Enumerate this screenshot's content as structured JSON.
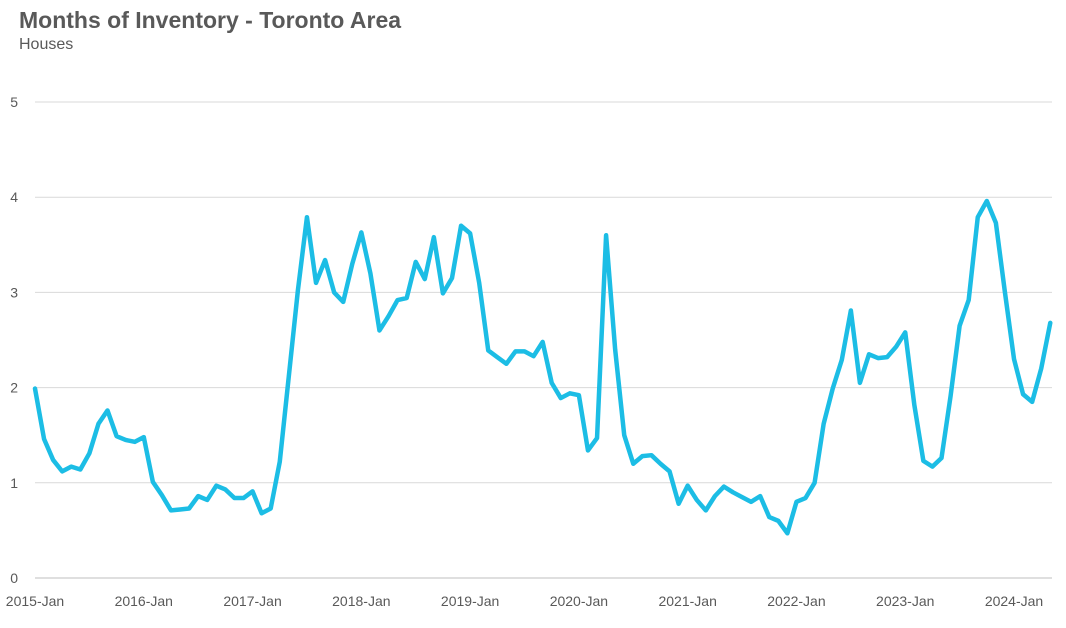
{
  "header": {
    "title": "Months of Inventory - Toronto Area",
    "subtitle": "Houses"
  },
  "chart_data": {
    "type": "line",
    "title": "Months of Inventory - Toronto Area",
    "subtitle": "Houses",
    "xlabel": "",
    "ylabel": "",
    "ylim": [
      0,
      5
    ],
    "yticks": [
      "0",
      "1",
      "2",
      "3",
      "4",
      "5"
    ],
    "xticks": [
      "2015-Jan",
      "2016-Jan",
      "2017-Jan",
      "2018-Jan",
      "2019-Jan",
      "2020-Jan",
      "2021-Jan",
      "2022-Jan",
      "2023-Jan",
      "2024-Jan"
    ],
    "grid": true,
    "legend": "none",
    "colors": {
      "line": "#1cbde5",
      "grid": "#d9d9d9",
      "text": "#595959"
    },
    "series": [
      {
        "start": "2015-Jan",
        "frequency": "monthly",
        "values": [
          1.99,
          1.46,
          1.24,
          1.12,
          1.17,
          1.14,
          1.31,
          1.62,
          1.76,
          1.49,
          1.45,
          1.43,
          1.48,
          1.01,
          0.87,
          0.71,
          0.72,
          0.73,
          0.86,
          0.82,
          0.97,
          0.93,
          0.84,
          0.84,
          0.91,
          0.68,
          0.73,
          1.22,
          2.12,
          3.02,
          3.79,
          3.1,
          3.34,
          3.0,
          2.9,
          3.3,
          3.63,
          3.2,
          2.6,
          2.75,
          2.92,
          2.94,
          3.32,
          3.14,
          3.58,
          2.99,
          3.15,
          3.7,
          3.62,
          3.1,
          2.39,
          2.32,
          2.25,
          2.38,
          2.38,
          2.33,
          2.48,
          2.05,
          1.89,
          1.94,
          1.92,
          1.34,
          1.47,
          3.6,
          2.4,
          1.5,
          1.2,
          1.28,
          1.29,
          1.2,
          1.12,
          0.78,
          0.97,
          0.82,
          0.71,
          0.86,
          0.96,
          0.9,
          0.85,
          0.8,
          0.86,
          0.64,
          0.6,
          0.47,
          0.8,
          0.84,
          1.0,
          1.62,
          1.99,
          2.29,
          2.81,
          2.05,
          2.35,
          2.31,
          2.32,
          2.43,
          2.58,
          1.82,
          1.23,
          1.17,
          1.26,
          1.91,
          2.65,
          2.92,
          3.79,
          3.96,
          3.73,
          3.0,
          2.3,
          1.93,
          1.85,
          2.2,
          2.68
        ]
      }
    ]
  }
}
